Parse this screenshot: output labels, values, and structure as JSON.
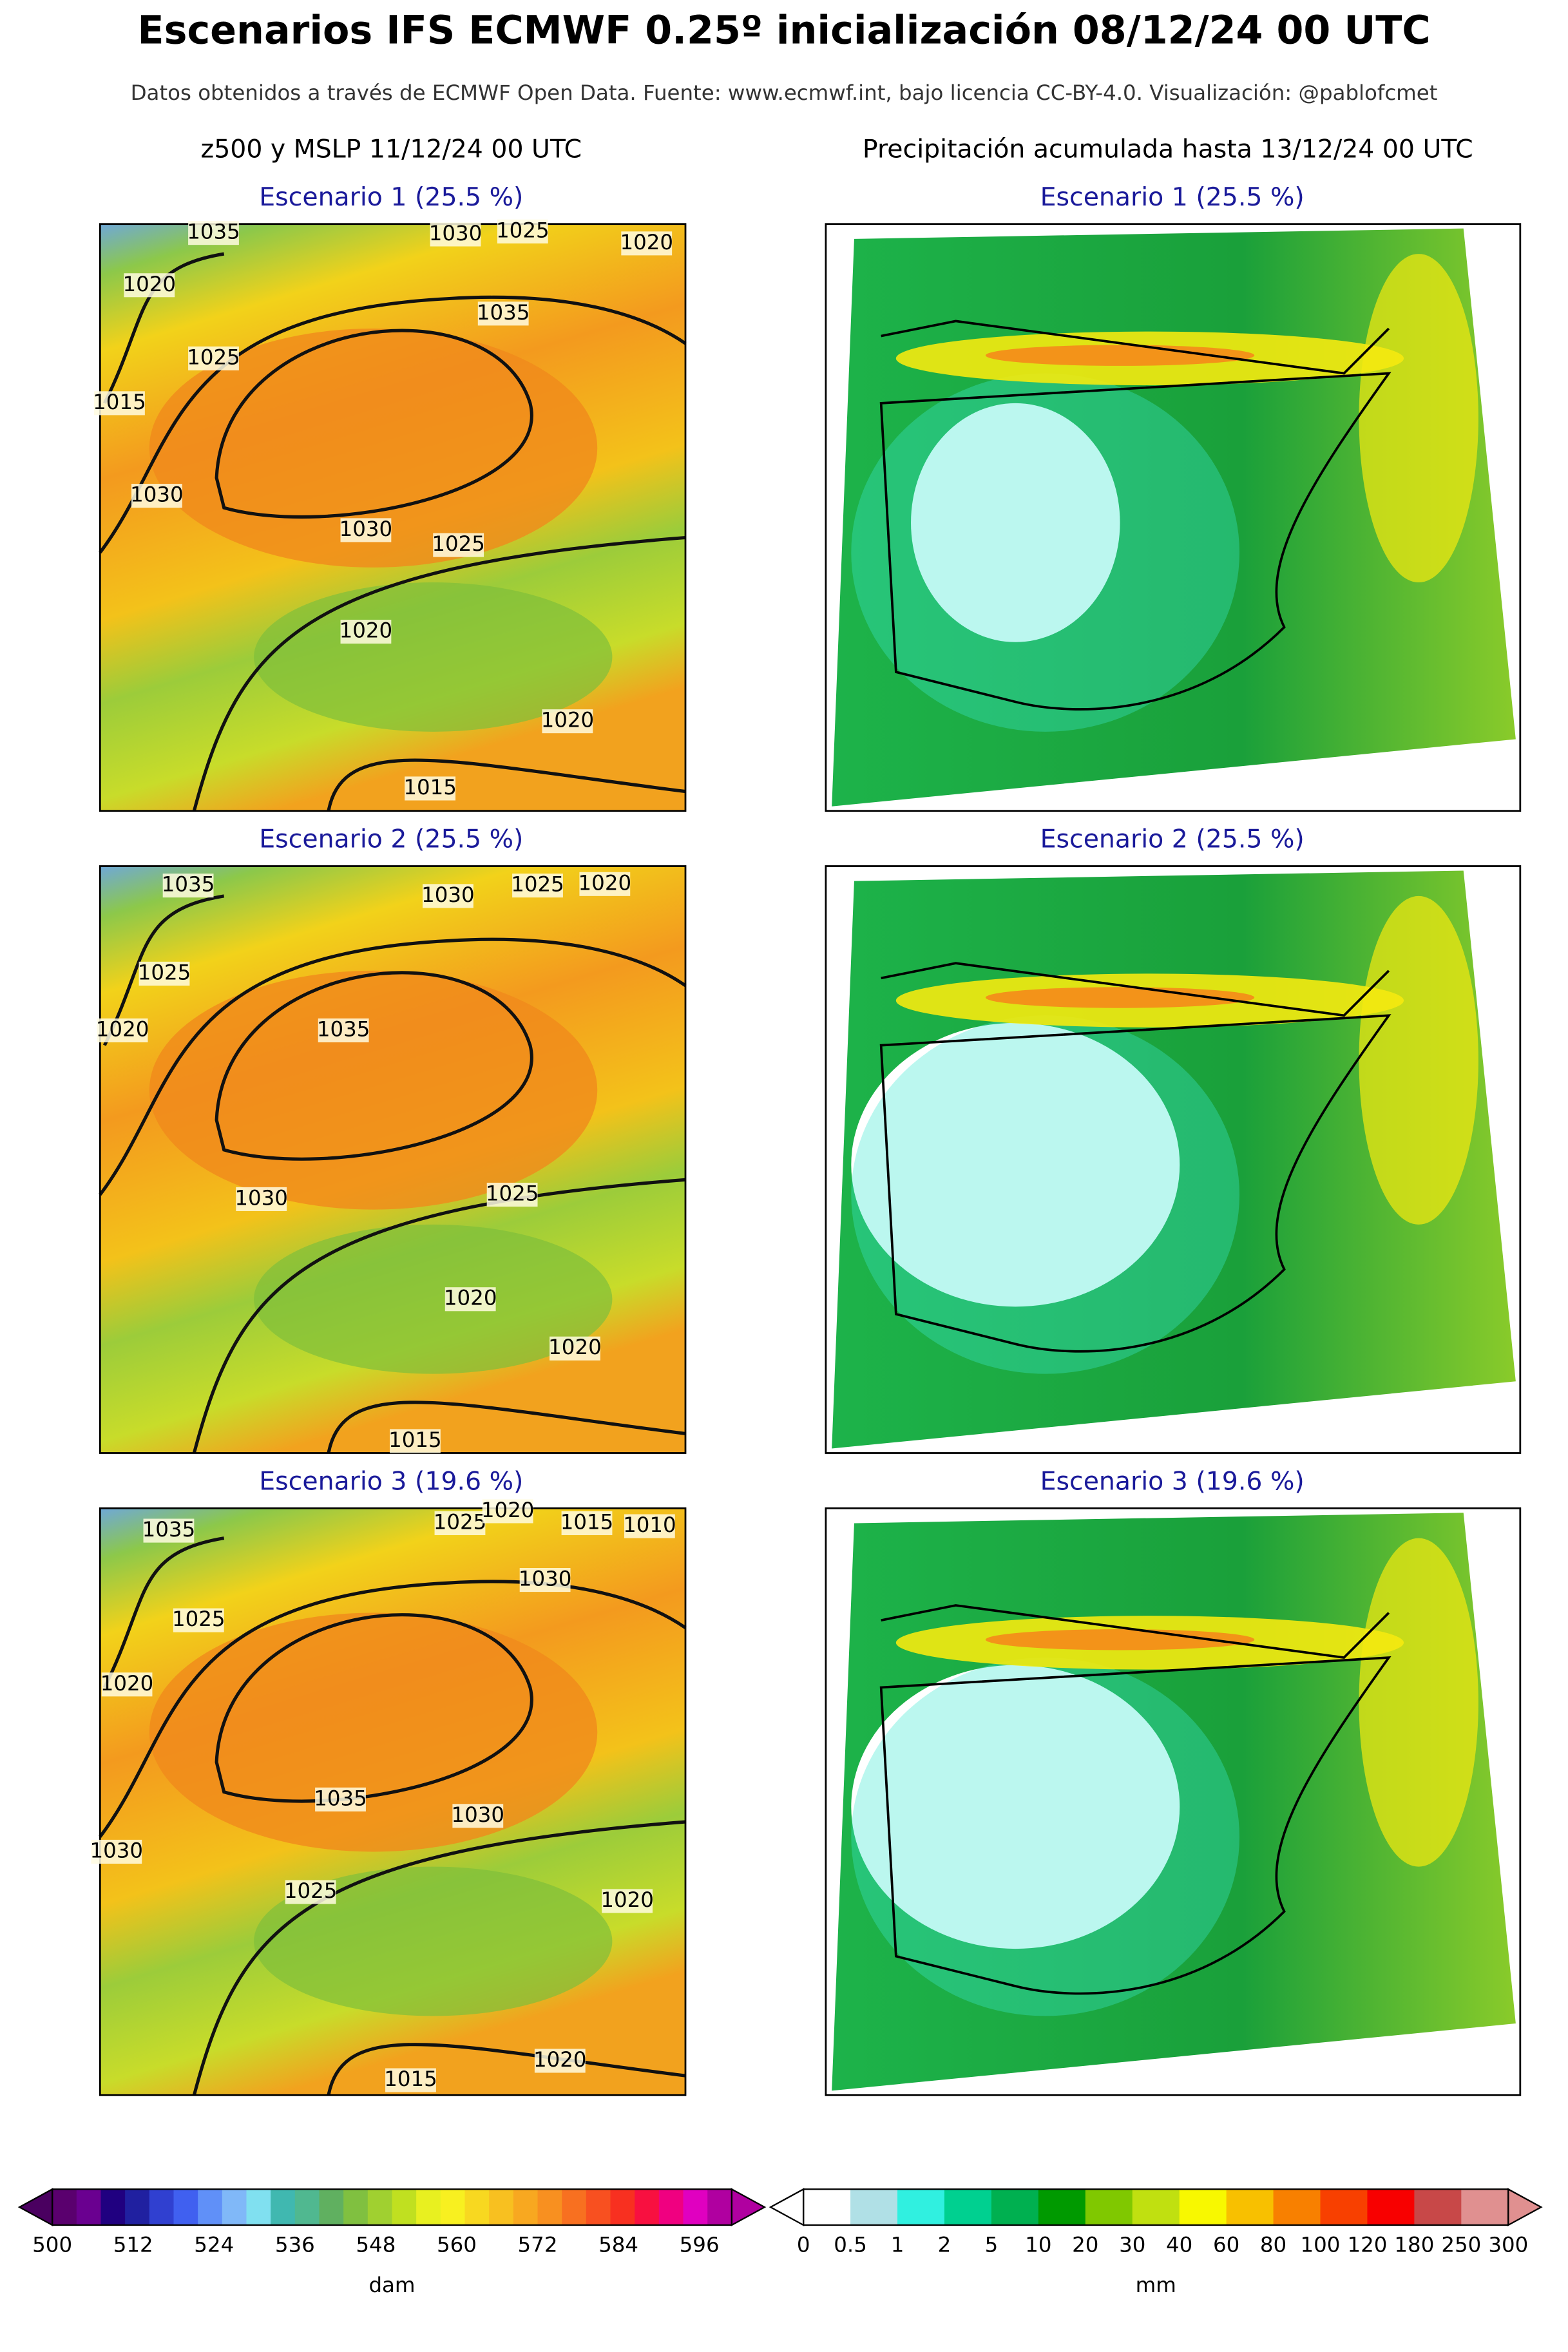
{
  "header": {
    "title": "Escenarios IFS ECMWF 0.25º inicialización 08/12/24 00 UTC",
    "subtitle": "Datos obtenidos a través de ECMWF Open Data. Fuente: www.ecmwf.int, bajo licencia CC-BY-4.0. Visualización: @pablofcmet"
  },
  "columns": [
    {
      "heading": "z500 y MSLP 11/12/24 00 UTC"
    },
    {
      "heading": "Precipitación acumulada hasta 13/12/24 00 UTC"
    }
  ],
  "scenarios": [
    {
      "label": "Escenario 1 (25.5 %)",
      "contour_labels": [
        "1035",
        "1030",
        "1025",
        "1020",
        "1020",
        "1035",
        "1025",
        "1015",
        "1030",
        "1030",
        "1025",
        "1020",
        "1020",
        "1015"
      ]
    },
    {
      "label": "Escenario 2 (25.5 %)",
      "contour_labels": [
        "1035",
        "1030",
        "1025",
        "1020",
        "1025",
        "1020",
        "1035",
        "1030",
        "1025",
        "1020",
        "1020",
        "1015"
      ]
    },
    {
      "label": "Escenario 3 (19.6 %)",
      "contour_labels": [
        "1035",
        "1025",
        "1020",
        "1015",
        "1010",
        "1030",
        "1025",
        "1020",
        "1030",
        "1035",
        "1030",
        "1025",
        "1020",
        "1020",
        "1015"
      ]
    }
  ],
  "colorbars": [
    {
      "ticks": [
        "500",
        "512",
        "524",
        "536",
        "548",
        "560",
        "572",
        "584",
        "596"
      ],
      "unit": "dam"
    },
    {
      "ticks": [
        "0",
        "0.5",
        "1",
        "2",
        "5",
        "10",
        "20",
        "30",
        "40",
        "60",
        "80",
        "100",
        "120",
        "180",
        "250",
        "300"
      ],
      "unit": "mm"
    }
  ]
}
